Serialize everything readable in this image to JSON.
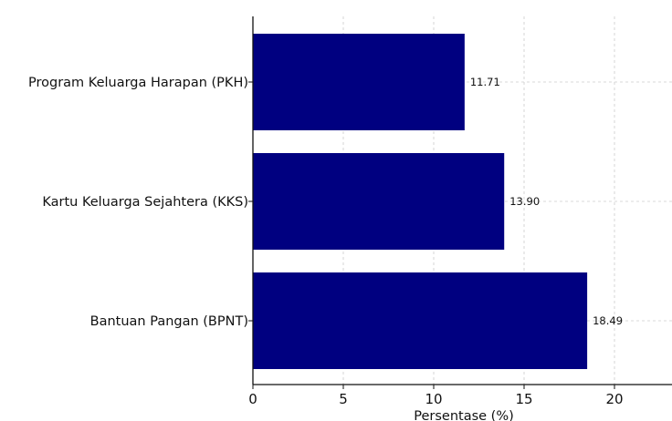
{
  "chart_data": {
    "type": "bar",
    "orientation": "horizontal",
    "categories": [
      "Program Keluarga Harapan (PKH)",
      "Kartu Keluarga Sejahtera (KKS)",
      "Bantuan Pangan (BPNT)"
    ],
    "values": [
      11.71,
      13.9,
      18.49
    ],
    "data_labels": [
      "11.71",
      "13.90",
      "18.49"
    ],
    "title": "",
    "xlabel": "Persentase (%)",
    "ylabel": "",
    "xlim": [
      0,
      23.2
    ],
    "x_ticks": [
      0,
      5,
      10,
      15,
      20
    ],
    "grid": true,
    "grid_style": "dashed",
    "bar_color": "#000080",
    "grid_color": "#cccccc"
  }
}
